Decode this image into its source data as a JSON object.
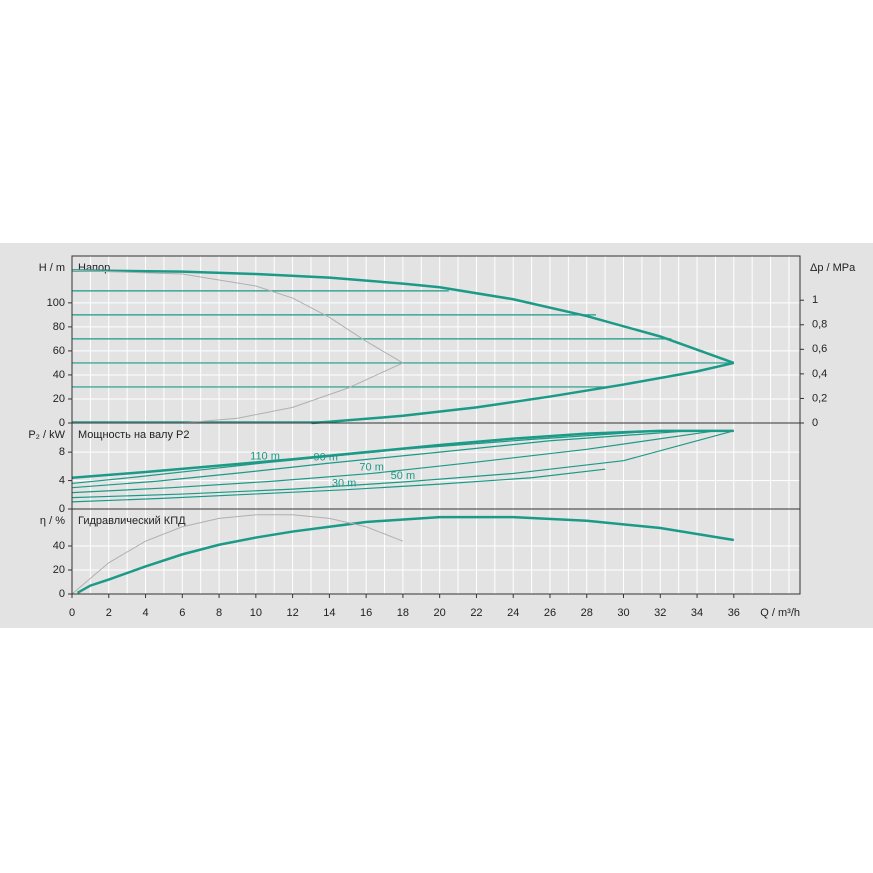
{
  "chart_data": [
    {
      "type": "line",
      "title": "Напор",
      "ylabel": "H / m",
      "y2label": "Δp / MPa",
      "xlim": [
        0,
        39.6
      ],
      "ylim": [
        0,
        139
      ],
      "yticks": [
        0,
        20,
        40,
        60,
        80,
        100
      ],
      "y2lim": [
        0,
        1.36
      ],
      "y2ticks": [
        0,
        {
          "value": 0.2,
          "label": "0,2"
        },
        {
          "value": 0.4,
          "label": "0,4"
        },
        {
          "value": 0.6,
          "label": "0,6"
        },
        {
          "value": 0.8,
          "label": "0,8"
        },
        1
      ],
      "grid": true,
      "series": [
        {
          "color": "#1c9a88",
          "line_width": 2.5,
          "x": [
            0,
            6,
            10,
            14,
            18,
            20,
            24,
            28,
            32,
            36
          ],
          "values": [
            127,
            126,
            124,
            121,
            116,
            113,
            103,
            89,
            72,
            50
          ]
        },
        {
          "color": "#1c9a88",
          "line_width": 2.5,
          "x": [
            13,
            14,
            18,
            22,
            26,
            30,
            34,
            36
          ],
          "values": [
            0,
            1,
            6,
            13,
            22,
            32,
            43,
            50
          ]
        },
        {
          "color": "#1c9a88",
          "line_width": 1.2,
          "x": [
            0,
            20.5
          ],
          "values": [
            110,
            110
          ]
        },
        {
          "color": "#1c9a88",
          "line_width": 1.2,
          "x": [
            0,
            28.5
          ],
          "values": [
            90,
            90
          ]
        },
        {
          "color": "#1c9a88",
          "line_width": 1.2,
          "x": [
            0,
            32.6
          ],
          "values": [
            70,
            70
          ]
        },
        {
          "color": "#1c9a88",
          "line_width": 1.2,
          "x": [
            0,
            36
          ],
          "values": [
            50,
            50
          ]
        },
        {
          "color": "#1c9a88",
          "line_width": 1.2,
          "x": [
            0,
            29.3
          ],
          "values": [
            30,
            30
          ]
        },
        {
          "color": "#1c9a88",
          "line_width": 1.2,
          "x": [
            0,
            14
          ],
          "values": [
            1,
            1
          ]
        },
        {
          "color": "#b0b0b0",
          "line_width": 1,
          "x": [
            0,
            6,
            10,
            12,
            14,
            16,
            18
          ],
          "values": [
            127,
            124,
            114,
            104,
            88,
            68,
            50
          ]
        },
        {
          "color": "#b0b0b0",
          "line_width": 1,
          "x": [
            6,
            9,
            12,
            15,
            18
          ],
          "values": [
            0,
            4,
            13,
            29,
            50
          ]
        }
      ]
    },
    {
      "type": "line",
      "title": "Мощность на валу P2",
      "ylabel": "P₂ / kW",
      "xlim": [
        0,
        39.6
      ],
      "ylim": [
        0,
        12.1
      ],
      "yticks": [
        0,
        4,
        8
      ],
      "grid": true,
      "series": [
        {
          "color": "#1c9a88",
          "line_width": 2.5,
          "x": [
            0,
            4,
            8,
            12,
            16,
            20,
            24,
            28,
            32,
            36
          ],
          "values": [
            4.4,
            5.2,
            6.1,
            7.0,
            8.0,
            9.0,
            9.9,
            10.6,
            11.0,
            11.0
          ]
        },
        {
          "name": "110 m",
          "color": "#1c9a88",
          "line_width": 1.2,
          "x": [
            0,
            3.5,
            7,
            10.5,
            18,
            25,
            32
          ],
          "values": [
            3.6,
            4.5,
            5.5,
            6.5,
            8.4,
            9.8,
            11.0
          ]
        },
        {
          "name": "90 m",
          "color": "#1c9a88",
          "line_width": 1.2,
          "x": [
            0,
            4.6,
            9.2,
            13.8,
            20,
            26,
            33.6
          ],
          "values": [
            3.0,
            3.9,
            5.1,
            6.4,
            8.0,
            9.6,
            11.0
          ]
        },
        {
          "name": "70 m",
          "color": "#1c9a88",
          "line_width": 1.2,
          "x": [
            0,
            5.4,
            10.9,
            16.3,
            22,
            28,
            35
          ],
          "values": [
            2.3,
            3.0,
            3.9,
            5.0,
            6.6,
            8.4,
            11.0
          ]
        },
        {
          "name": "50 m",
          "color": "#1c9a88",
          "line_width": 1.2,
          "x": [
            0,
            6,
            12,
            18,
            24,
            30,
            36
          ],
          "values": [
            1.6,
            2.1,
            2.8,
            3.8,
            5.0,
            6.8,
            11.0
          ]
        },
        {
          "name": "30 m",
          "color": "#1c9a88",
          "line_width": 1.2,
          "x": [
            0,
            4.9,
            9.9,
            14.8,
            20,
            25,
            29
          ],
          "values": [
            1.0,
            1.5,
            2.1,
            2.7,
            3.5,
            4.4,
            5.6
          ]
        }
      ]
    },
    {
      "type": "line",
      "title": "Гидравлический КПД",
      "ylabel": "η / %",
      "xlabel": "Q / m³/h",
      "xlim": [
        0,
        39.6
      ],
      "xticks": [
        0,
        2,
        4,
        6,
        8,
        10,
        12,
        14,
        16,
        18,
        20,
        22,
        24,
        26,
        28,
        30,
        32,
        34,
        36
      ],
      "ylim": [
        0,
        70.8
      ],
      "yticks": [
        0,
        20,
        40
      ],
      "grid": true,
      "series": [
        {
          "color": "#1c9a88",
          "line_width": 2.5,
          "x": [
            0.3,
            1,
            2,
            4,
            6,
            8,
            10,
            12,
            14,
            16,
            20,
            24,
            28,
            32,
            36
          ],
          "values": [
            1,
            7,
            12,
            23,
            33,
            41,
            47,
            52,
            56,
            60,
            64,
            64,
            61,
            55,
            45
          ]
        },
        {
          "color": "#b0b0b0",
          "line_width": 1,
          "x": [
            0,
            2,
            4,
            6,
            8,
            10,
            12,
            14,
            16,
            18
          ],
          "values": [
            0,
            26,
            44,
            56,
            63,
            66,
            66,
            63,
            56,
            44
          ]
        }
      ]
    }
  ]
}
